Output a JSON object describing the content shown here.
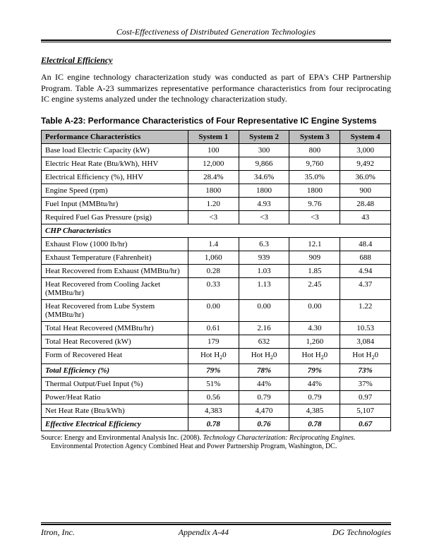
{
  "header_title": "Cost-Effectiveness of Distributed Generation Technologies",
  "section_heading": "Electrical Efficiency",
  "paragraph": "An IC engine technology characterization study was conducted as part of EPA's CHP Partnership Program. Table A-23 summarizes representative performance characteristics from four reciprocating IC engine systems analyzed under the technology characterization study.",
  "table_title": "Table A-23:  Performance Characteristics of Four Representative IC Engine Systems",
  "table": {
    "header": [
      "Performance Characteristics",
      "System 1",
      "System 2",
      "System 3",
      "System 4"
    ],
    "rows": [
      {
        "label": "Base load Electric Capacity (kW)",
        "vals": [
          "100",
          "300",
          "800",
          "3,000"
        ]
      },
      {
        "label": "Electric Heat Rate (Btu/kWh), HHV",
        "vals": [
          "12,000",
          "9,866",
          "9,760",
          "9,492"
        ]
      },
      {
        "label": "Electrical Efficiency (%), HHV",
        "vals": [
          "28.4%",
          "34.6%",
          "35.0%",
          "36.0%"
        ]
      },
      {
        "label": "Engine Speed (rpm)",
        "vals": [
          "1800",
          "1800",
          "1800",
          "900"
        ]
      },
      {
        "label": "Fuel Input (MMBtu/hr)",
        "vals": [
          "1.20",
          "4.93",
          "9.76",
          "28.48"
        ]
      },
      {
        "label": "Required Fuel Gas Pressure (psig)",
        "vals": [
          "<3",
          "<3",
          "<3",
          "43"
        ]
      },
      {
        "section": "CHP Characteristics"
      },
      {
        "label": "Exhaust Flow (1000 lb/hr)",
        "vals": [
          "1.4",
          "6.3",
          "12.1",
          "48.4"
        ]
      },
      {
        "label": "Exhaust Temperature (Fahrenheit)",
        "vals": [
          "1,060",
          "939",
          "909",
          "688"
        ]
      },
      {
        "label": "Heat Recovered from Exhaust (MMBtu/hr)",
        "vals": [
          "0.28",
          "1.03",
          "1.85",
          "4.94"
        ]
      },
      {
        "label": "Heat Recovered from Cooling Jacket (MMBtu/hr)",
        "vals": [
          "0.33",
          "1.13",
          "2.45",
          "4.37"
        ]
      },
      {
        "label": "Heat Recovered from Lube System (MMBtu/hr)",
        "vals": [
          "0.00",
          "0.00",
          "0.00",
          "1.22"
        ]
      },
      {
        "label": "Total Heat Recovered (MMBtu/hr)",
        "vals": [
          "0.61",
          "2.16",
          "4.30",
          "10.53"
        ]
      },
      {
        "label": "Total Heat Recovered (kW)",
        "vals": [
          "179",
          "632",
          "1,260",
          "3,084"
        ]
      },
      {
        "label_special": "Form of Recovered Heat",
        "vals_special": "hot_h2o"
      },
      {
        "bold": true,
        "label": "Total Efficiency (%)",
        "vals": [
          "79%",
          "78%",
          "79%",
          "73%"
        ]
      },
      {
        "label": "Thermal Output/Fuel Input (%)",
        "vals": [
          "51%",
          "44%",
          "44%",
          "37%"
        ]
      },
      {
        "label": "Power/Heat Ratio",
        "vals": [
          "0.56",
          "0.79",
          "0.79",
          "0.97"
        ]
      },
      {
        "label": "Net Heat Rate (Btu/kWh)",
        "vals": [
          "4,383",
          "4,470",
          "4,385",
          "5,107"
        ]
      },
      {
        "bold": true,
        "label": "Effective Electrical Efficiency",
        "vals": [
          "0.78",
          "0.76",
          "0.78",
          "0.67"
        ]
      }
    ]
  },
  "source_pre": "Source:  Energy and Environmental Analysis Inc.  (2008). ",
  "source_ital": "Technology Characterization:  Reciprocating Engines.",
  "source_post": " Environmental Protection Agency Combined Heat and Power Partnership Program, Washington, DC.",
  "footer": {
    "left": "Itron, Inc.",
    "center": "Appendix A-44",
    "right": "DG Technologies"
  }
}
